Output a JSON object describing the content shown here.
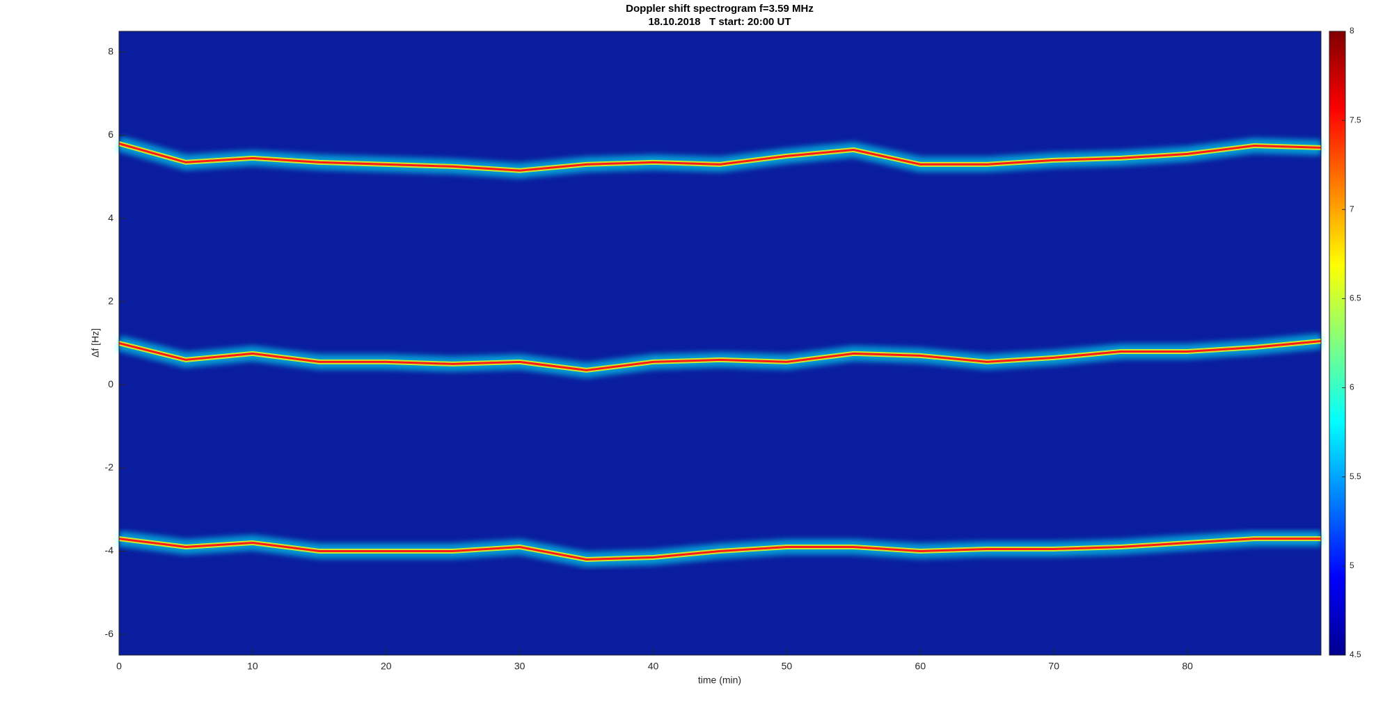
{
  "chart_data": {
    "type": "spectrogram",
    "title": "Doppler shift spectrogram f=3.59 MHz",
    "subtitle": "18.10.2018   T start: 20:00 UT",
    "x_label": "time (min)",
    "y_label": "Δf [Hz]",
    "background_color": "#0a1d9e",
    "x": [
      0,
      5,
      10,
      15,
      20,
      25,
      30,
      35,
      40,
      45,
      50,
      55,
      60,
      65,
      70,
      75,
      80,
      85,
      90
    ],
    "series": [
      {
        "color": "#ff1a1a",
        "values": [
          5.8,
          5.35,
          5.45,
          5.35,
          5.3,
          5.25,
          5.15,
          5.3,
          5.35,
          5.3,
          5.5,
          5.65,
          5.3,
          5.3,
          5.4,
          5.45,
          5.55,
          5.75,
          5.7
        ]
      },
      {
        "color": "#ff1a1a",
        "values": [
          1.0,
          0.6,
          0.75,
          0.55,
          0.55,
          0.5,
          0.55,
          0.35,
          0.55,
          0.6,
          0.55,
          0.75,
          0.7,
          0.55,
          0.65,
          0.8,
          0.8,
          0.9,
          1.05
        ]
      },
      {
        "color": "#ff1a1a",
        "values": [
          -3.7,
          -3.9,
          -3.8,
          -4.0,
          -4.0,
          -4.0,
          -3.9,
          -4.2,
          -4.15,
          -4.0,
          -3.9,
          -3.9,
          -4.0,
          -3.95,
          -3.95,
          -3.9,
          -3.8,
          -3.7,
          -3.7
        ]
      }
    ],
    "xlim": [
      0,
      90
    ],
    "xticks": [
      0,
      10,
      20,
      30,
      40,
      50,
      60,
      70,
      80
    ],
    "ylim": [
      -6.5,
      8.5
    ],
    "yticks": [
      -6,
      -4,
      -2,
      0,
      2,
      4,
      6,
      8
    ],
    "colormap": [
      "#00008f",
      "#0000ff",
      "#0080ff",
      "#00ffff",
      "#80ff80",
      "#ffff00",
      "#ff8000",
      "#ff0000",
      "#800000"
    ],
    "clim": [
      4.5,
      8
    ],
    "cticks": [
      4.5,
      5,
      5.5,
      6,
      6.5,
      7,
      7.5,
      8
    ]
  }
}
